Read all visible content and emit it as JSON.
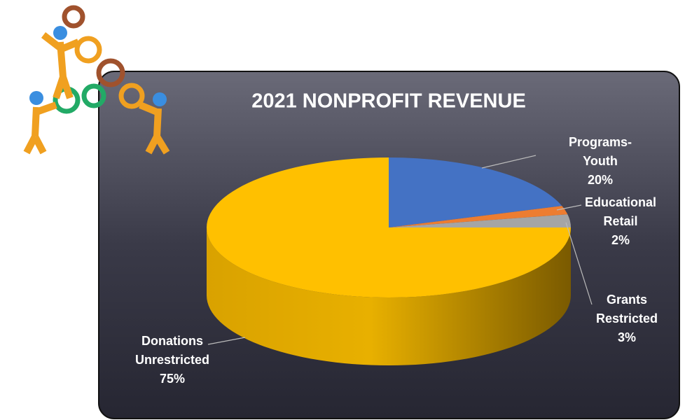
{
  "chart_data": {
    "type": "pie",
    "title": "2021 NONPROFIT REVENUE",
    "categories": [
      "Programs- Youth",
      "Educational Retail",
      "Grants Restricted",
      "Donations Unrestricted"
    ],
    "values": [
      20,
      2,
      3,
      75
    ],
    "value_labels": [
      "20%",
      "2%",
      "3%",
      "75%"
    ],
    "colors": [
      "#4472c4",
      "#ed7d31",
      "#a5a5a5",
      "#ffc000"
    ]
  }
}
